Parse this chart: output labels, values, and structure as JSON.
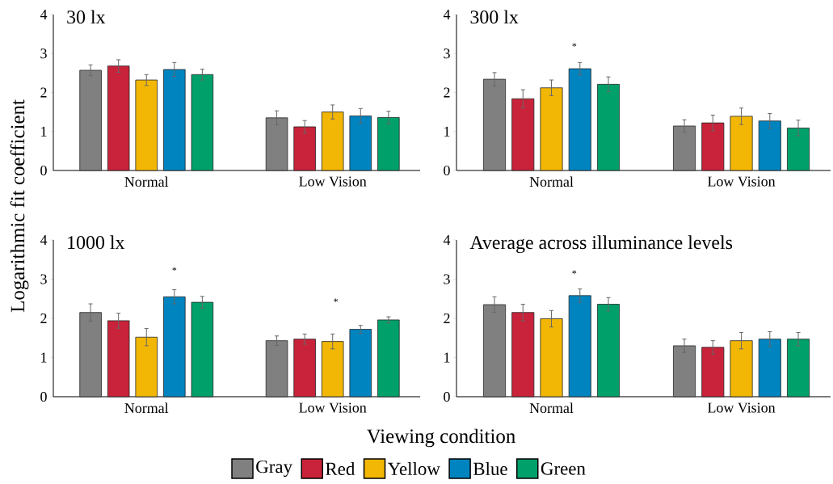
{
  "chart_data": [
    {
      "type": "bar",
      "title": "30 lx",
      "ylabel": "Logarithmic fit coefficient",
      "xlabel": "Viewing condition",
      "legend": "bottom",
      "categories": [
        "Normal",
        "Low Vision"
      ],
      "ylim": [
        0,
        4
      ],
      "yticks": [
        0,
        1,
        2,
        3,
        4
      ],
      "series": [
        {
          "name": "Gray",
          "color": "#808080",
          "values": [
            2.57,
            1.35
          ],
          "errors": [
            0.14,
            0.18
          ]
        },
        {
          "name": "Red",
          "color": "#c8233a",
          "values": [
            2.68,
            1.12
          ],
          "errors": [
            0.16,
            0.16
          ]
        },
        {
          "name": "Yellow",
          "color": "#f2b705",
          "values": [
            2.32,
            1.5
          ],
          "errors": [
            0.14,
            0.18
          ]
        },
        {
          "name": "Blue",
          "color": "#0084c0",
          "values": [
            2.59,
            1.4
          ],
          "errors": [
            0.18,
            0.19
          ]
        },
        {
          "name": "Green",
          "color": "#00a06a",
          "values": [
            2.46,
            1.36
          ],
          "errors": [
            0.14,
            0.16
          ]
        }
      ]
    },
    {
      "type": "bar",
      "title": "300 lx",
      "categories": [
        "Normal",
        "Low Vision"
      ],
      "ylim": [
        0,
        4
      ],
      "yticks": [
        0,
        1,
        2,
        3,
        4
      ],
      "annotations": [
        "*"
      ],
      "series": [
        {
          "color": "#808080",
          "values": [
            2.34,
            1.14
          ],
          "errors": [
            0.17,
            0.16
          ]
        },
        {
          "color": "#c8233a",
          "values": [
            1.84,
            1.22
          ],
          "errors": [
            0.23,
            0.2
          ]
        },
        {
          "color": "#f2b705",
          "values": [
            2.12,
            1.39
          ],
          "errors": [
            0.2,
            0.21
          ]
        },
        {
          "color": "#0084c0",
          "values": [
            2.61,
            1.27
          ],
          "errors": [
            0.16,
            0.19
          ]
        },
        {
          "color": "#00a06a",
          "values": [
            2.21,
            1.09
          ],
          "errors": [
            0.19,
            0.2
          ]
        }
      ]
    },
    {
      "type": "bar",
      "title": "1000 lx",
      "categories": [
        "Normal",
        "Low Vision"
      ],
      "ylim": [
        0,
        4
      ],
      "yticks": [
        0,
        1,
        2,
        3,
        4
      ],
      "annotations": [
        "*",
        "*"
      ],
      "series": [
        {
          "color": "#808080",
          "values": [
            2.15,
            1.43
          ],
          "errors": [
            0.22,
            0.12
          ]
        },
        {
          "color": "#c8233a",
          "values": [
            1.94,
            1.47
          ],
          "errors": [
            0.19,
            0.13
          ]
        },
        {
          "color": "#f2b705",
          "values": [
            1.52,
            1.41
          ],
          "errors": [
            0.22,
            0.19
          ]
        },
        {
          "color": "#0084c0",
          "values": [
            2.55,
            1.72
          ],
          "errors": [
            0.18,
            0.1
          ]
        },
        {
          "color": "#00a06a",
          "values": [
            2.41,
            1.96
          ],
          "errors": [
            0.15,
            0.08
          ]
        }
      ]
    },
    {
      "type": "bar",
      "title": "Average across illuminance levels",
      "categories": [
        "Normal",
        "Low Vision"
      ],
      "ylim": [
        0,
        4
      ],
      "yticks": [
        0,
        1,
        2,
        3,
        4
      ],
      "annotations": [
        "*"
      ],
      "series": [
        {
          "color": "#808080",
          "values": [
            2.35,
            1.3
          ],
          "errors": [
            0.2,
            0.17
          ]
        },
        {
          "color": "#c8233a",
          "values": [
            2.15,
            1.26
          ],
          "errors": [
            0.21,
            0.17
          ]
        },
        {
          "color": "#f2b705",
          "values": [
            1.99,
            1.43
          ],
          "errors": [
            0.21,
            0.21
          ]
        },
        {
          "color": "#0084c0",
          "values": [
            2.58,
            1.47
          ],
          "errors": [
            0.17,
            0.19
          ]
        },
        {
          "color": "#00a06a",
          "values": [
            2.36,
            1.47
          ],
          "errors": [
            0.17,
            0.17
          ]
        }
      ]
    }
  ]
}
